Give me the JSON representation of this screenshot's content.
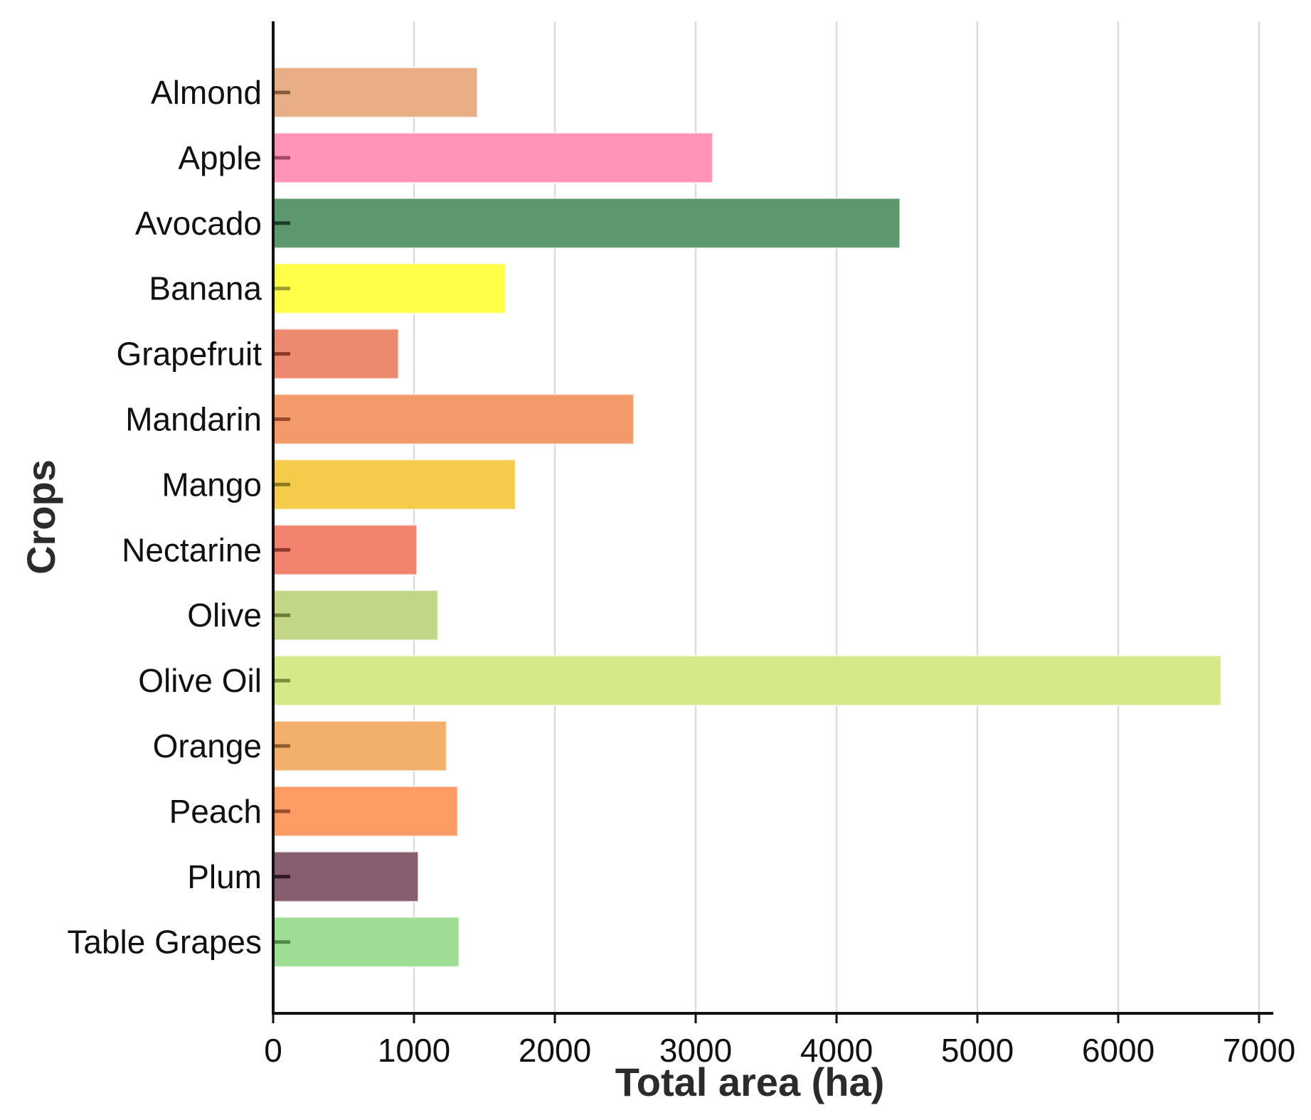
{
  "chart_data": {
    "type": "bar",
    "orientation": "horizontal",
    "title": "",
    "xlabel": "Total area (ha)",
    "ylabel": "Crops",
    "xlim": [
      0,
      7000
    ],
    "xticks": [
      "0",
      "1000",
      "2000",
      "3000",
      "4000",
      "5000",
      "6000",
      "7000"
    ],
    "grid": "vertical",
    "legend": "none",
    "categories": [
      "Almond",
      "Apple",
      "Avocado",
      "Banana",
      "Grapefruit",
      "Mandarin",
      "Mango",
      "Nectarine",
      "Olive",
      "Olive Oil",
      "Orange",
      "Peach",
      "Plum",
      "Table Grapes"
    ],
    "values": [
      1450,
      3120,
      4450,
      1650,
      890,
      2560,
      1720,
      1020,
      1170,
      6730,
      1230,
      1310,
      1030,
      1320
    ],
    "colors": [
      "#e8ae86",
      "#ff94b8",
      "#5c976e",
      "#ffff4a",
      "#ec8a70",
      "#f39a6a",
      "#f5cb4c",
      "#f2846f",
      "#c1d686",
      "#d3e98a",
      "#f3af6c",
      "#fe9c66",
      "#875e6f",
      "#9fdc94"
    ],
    "marker_colors": [
      "#8a5a3c",
      "#a0486a",
      "#1b3d26",
      "#9aa02a",
      "#8b3a28",
      "#9a4a28",
      "#8f7a1a",
      "#8e3a2e",
      "#6e7e3a",
      "#7e8e3e",
      "#8e5e2e",
      "#9a4e2a",
      "#2e1a22",
      "#4e8a46"
    ]
  }
}
